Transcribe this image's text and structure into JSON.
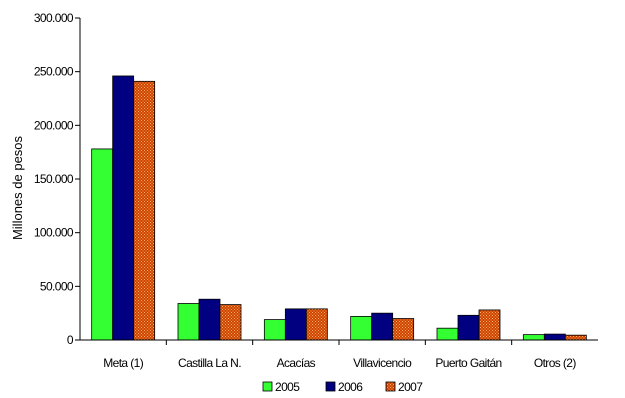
{
  "chart_data": {
    "type": "bar",
    "categories": [
      "Meta (1)",
      "Castilla La N.",
      "Acacías",
      "Villavicencio",
      "Puerto Gaitán",
      "Otros (2)"
    ],
    "series": [
      {
        "name": "2005",
        "values": [
          178000,
          34000,
          19000,
          22000,
          11000,
          5000
        ],
        "color": "#33ff33"
      },
      {
        "name": "2006",
        "values": [
          246000,
          38000,
          29000,
          25000,
          23000,
          5500
        ],
        "color": "#000080"
      },
      {
        "name": "2007",
        "values": [
          241000,
          33000,
          29000,
          20000,
          28000,
          4500
        ],
        "color": "#cc4400"
      }
    ],
    "ylabel": "Millones de pesos",
    "ylim": [
      0,
      300000
    ],
    "yticks": [
      "0",
      "50.000",
      "100.000",
      "150.000",
      "200.000",
      "250.000",
      "300.000"
    ],
    "grid": false,
    "legend_position": "bottom"
  }
}
